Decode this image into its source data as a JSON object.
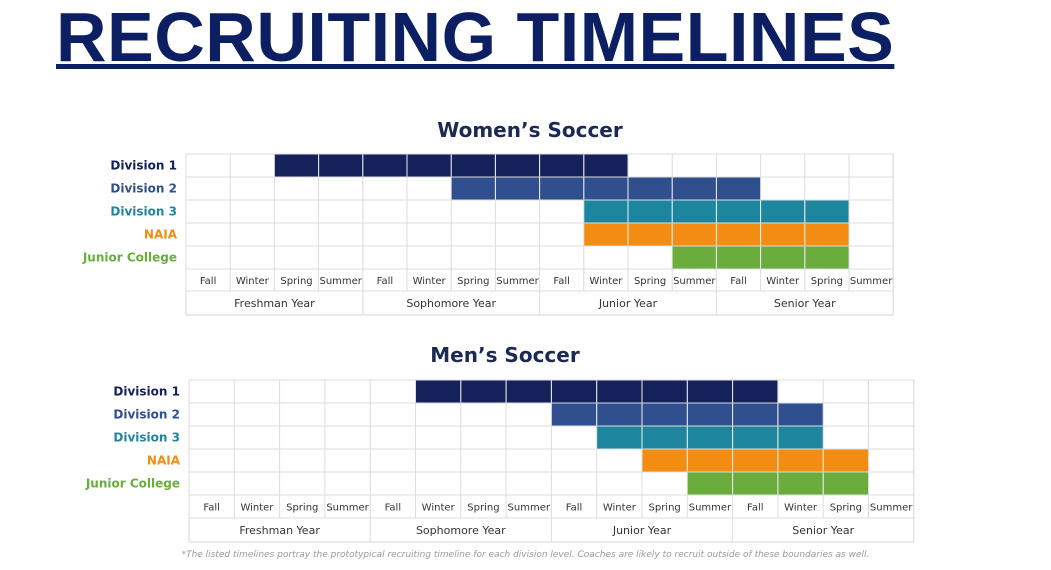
{
  "page": {
    "title": "RECRUITING TIMELINES",
    "footnote": "*The listed timelines portray the prototypical recruiting timeline for each division level. Coaches are likely to recruit outside of these boundaries as well."
  },
  "colors": {
    "Division 1": "#14215a",
    "Division 2": "#2f4f8e",
    "Division 3": "#1d869e",
    "NAIA": "#f28c13",
    "Junior College": "#6aad3c"
  },
  "chart_data": [
    {
      "type": "table",
      "title": "Women’s Soccer",
      "seasons": [
        "Fall",
        "Winter",
        "Spring",
        "Summer",
        "Fall",
        "Winter",
        "Spring",
        "Summer",
        "Fall",
        "Winter",
        "Spring",
        "Summer",
        "Fall",
        "Winter",
        "Spring",
        "Summer"
      ],
      "years": [
        "Freshman Year",
        "Sophomore Year",
        "Junior Year",
        "Senior Year"
      ],
      "rows": [
        {
          "label": "Division 1",
          "start": "Freshman Year Spring",
          "end": "Junior Year Winter",
          "start_index": 2,
          "end_index": 9
        },
        {
          "label": "Division 2",
          "start": "Sophomore Year Spring",
          "end": "Senior Year Fall",
          "start_index": 6,
          "end_index": 12
        },
        {
          "label": "Division 3",
          "start": "Junior Year Winter",
          "end": "Senior Year Spring",
          "start_index": 9,
          "end_index": 14
        },
        {
          "label": "NAIA",
          "start": "Junior Year Winter",
          "end": "Senior Year Spring",
          "start_index": 9,
          "end_index": 14
        },
        {
          "label": "Junior College",
          "start": "Junior Year Summer",
          "end": "Senior Year Spring",
          "start_index": 11,
          "end_index": 14
        }
      ]
    },
    {
      "type": "table",
      "title": "Men’s Soccer",
      "seasons": [
        "Fall",
        "Winter",
        "Spring",
        "Summer",
        "Fall",
        "Winter",
        "Spring",
        "Summer",
        "Fall",
        "Winter",
        "Spring",
        "Summer",
        "Fall",
        "Winter",
        "Spring",
        "Summer"
      ],
      "years": [
        "Freshman Year",
        "Sophomore Year",
        "Junior Year",
        "Senior Year"
      ],
      "rows": [
        {
          "label": "Division 1",
          "start": "Sophomore Year Winter",
          "end": "Senior Year Fall",
          "start_index": 5,
          "end_index": 12
        },
        {
          "label": "Division 2",
          "start": "Junior Year Fall",
          "end": "Senior Year Winter",
          "start_index": 8,
          "end_index": 13
        },
        {
          "label": "Division 3",
          "start": "Junior Year Winter",
          "end": "Senior Year Winter",
          "start_index": 9,
          "end_index": 13
        },
        {
          "label": "NAIA",
          "start": "Junior Year Spring",
          "end": "Senior Year Spring",
          "start_index": 10,
          "end_index": 14
        },
        {
          "label": "Junior College",
          "start": "Junior Year Summer",
          "end": "Senior Year Spring",
          "start_index": 11,
          "end_index": 14
        }
      ]
    }
  ]
}
